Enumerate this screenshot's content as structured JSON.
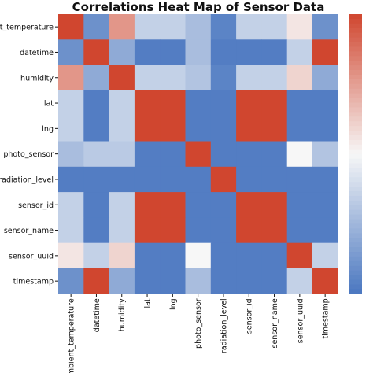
{
  "chart_data": {
    "type": "heatmap",
    "title": "Correlations Heat Map of Sensor Data",
    "row_labels": [
      "ambient_temperature",
      "datetime",
      "humidity",
      "lat",
      "lng",
      "photo_sensor",
      "radiation_level",
      "sensor_id",
      "sensor_name",
      "sensor_uuid",
      "timestamp"
    ],
    "col_labels": [
      "ambient_temperature",
      "datetime",
      "humidity",
      "lat",
      "lng",
      "photo_sensor",
      "radiation_level",
      "sensor_id",
      "sensor_name",
      "sensor_uuid",
      "timestamp"
    ],
    "values": [
      [
        1.0,
        -0.8,
        0.55,
        -0.3,
        -0.3,
        -0.45,
        -0.9,
        -0.3,
        -0.3,
        0.1,
        -0.8
      ],
      [
        -0.8,
        1.0,
        -0.6,
        -0.95,
        -0.95,
        -0.45,
        -0.95,
        -0.95,
        -0.95,
        -0.3,
        1.0
      ],
      [
        0.55,
        -0.6,
        1.0,
        -0.3,
        -0.3,
        -0.4,
        -0.9,
        -0.3,
        -0.3,
        0.2,
        -0.6
      ],
      [
        -0.3,
        -0.95,
        -0.3,
        1.0,
        1.0,
        -0.95,
        -0.95,
        1.0,
        1.0,
        -0.95,
        -0.95
      ],
      [
        -0.3,
        -0.95,
        -0.3,
        1.0,
        1.0,
        -0.95,
        -0.95,
        1.0,
        1.0,
        -0.95,
        -0.95
      ],
      [
        -0.45,
        -0.35,
        -0.35,
        -0.95,
        -0.95,
        1.0,
        -0.95,
        -0.95,
        -0.95,
        0.0,
        -0.4
      ],
      [
        -0.95,
        -0.95,
        -0.95,
        -0.95,
        -0.95,
        -0.95,
        1.0,
        -0.95,
        -0.95,
        -0.95,
        -0.95
      ],
      [
        -0.3,
        -0.95,
        -0.3,
        1.0,
        1.0,
        -0.95,
        -0.95,
        1.0,
        1.0,
        -0.95,
        -0.95
      ],
      [
        -0.3,
        -0.95,
        -0.3,
        1.0,
        1.0,
        -0.95,
        -0.95,
        1.0,
        1.0,
        -0.95,
        -0.95
      ],
      [
        0.1,
        -0.3,
        0.2,
        -0.95,
        -0.95,
        0.0,
        -0.95,
        -0.95,
        -0.95,
        1.0,
        -0.3
      ],
      [
        -0.8,
        1.0,
        -0.6,
        -0.95,
        -0.95,
        -0.45,
        -0.95,
        -0.95,
        -0.95,
        -0.3,
        1.0
      ]
    ],
    "value_range": [
      -1,
      1
    ],
    "colormap": {
      "low": "#4a77c0",
      "mid": "#f7f7f7",
      "high": "#d0462f"
    },
    "colorbar": true
  }
}
